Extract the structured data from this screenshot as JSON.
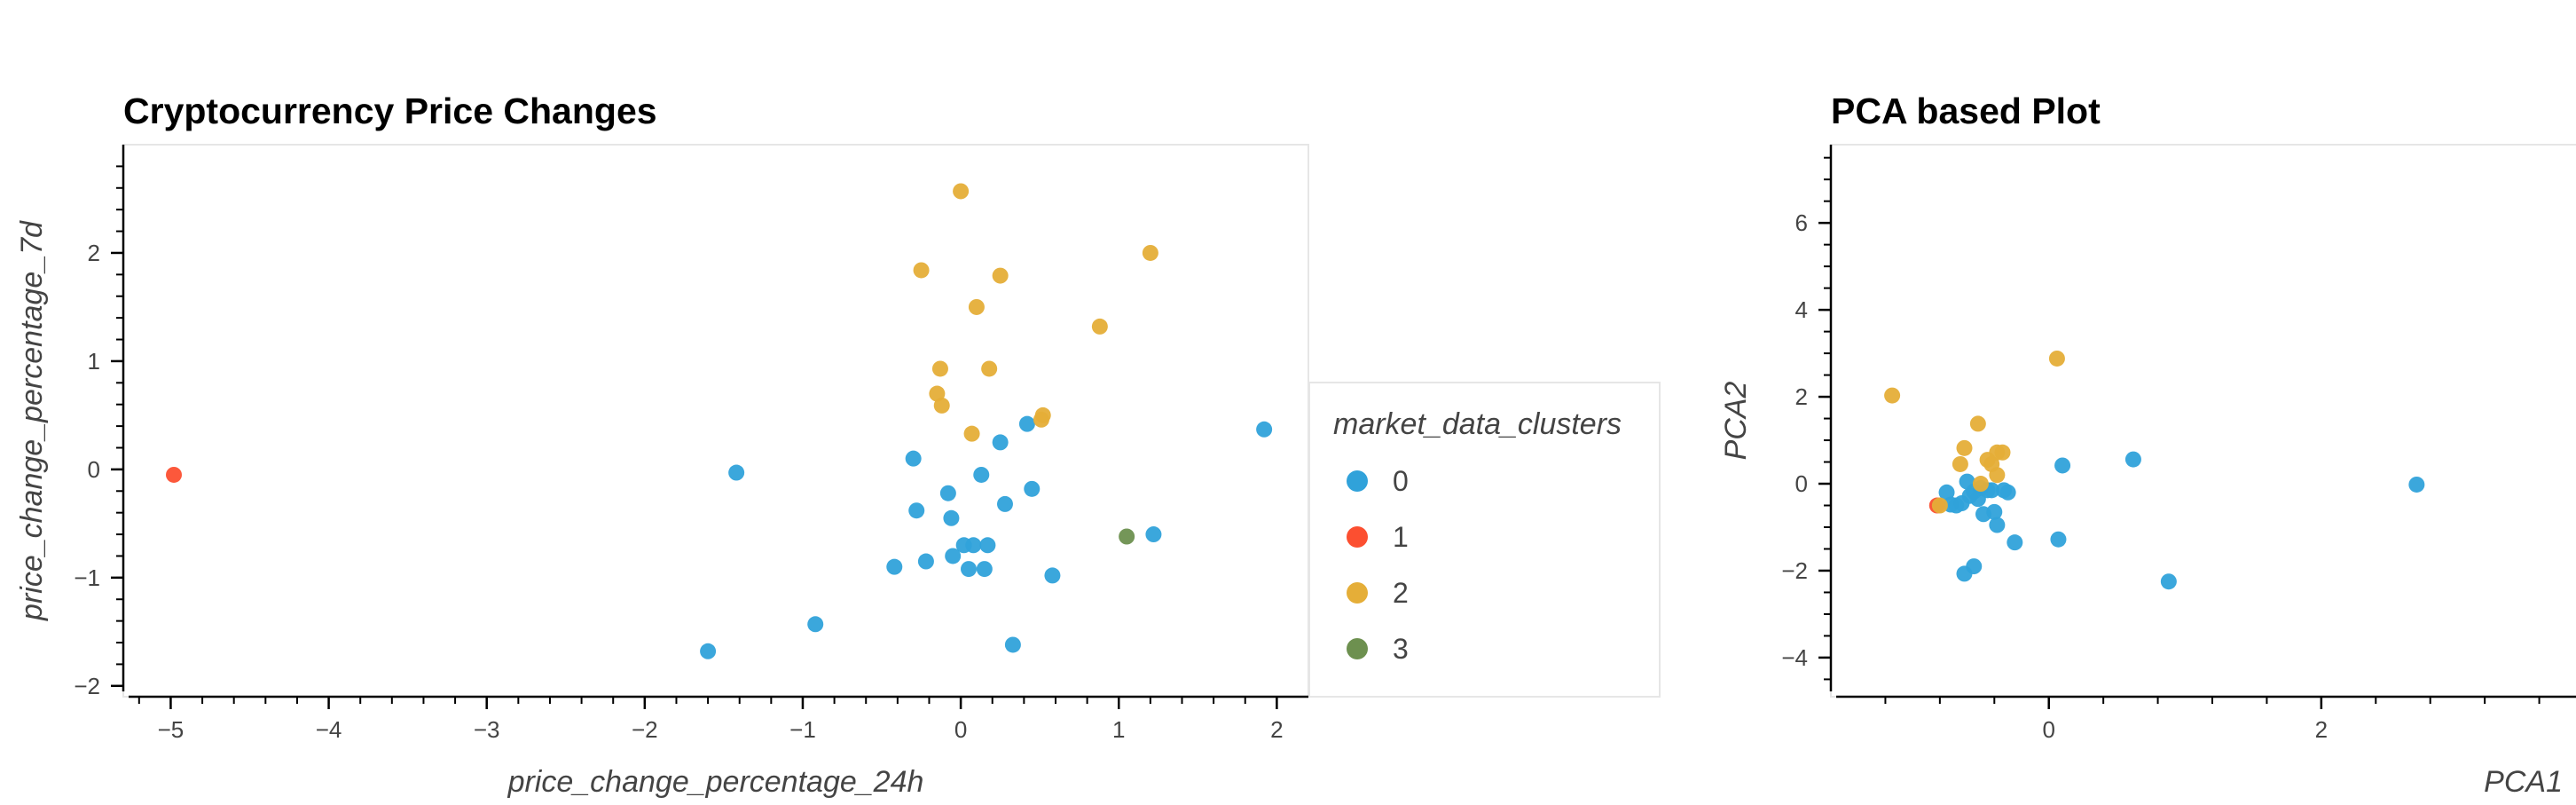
{
  "chart_data": [
    {
      "type": "scatter",
      "title": "Cryptocurrency Price Changes",
      "xlabel": "price_change_percentage_24h",
      "ylabel": "price_change_percentage_7d",
      "xlim": [
        -5.3,
        2.2
      ],
      "ylim": [
        -2.1,
        3.0
      ],
      "xticks": [
        -5,
        -4,
        -3,
        -2,
        -1,
        0,
        1,
        2
      ],
      "yticks": [
        -2,
        -1,
        0,
        1,
        2
      ],
      "grid": false,
      "legend": {
        "title": "market_data_clusters",
        "placement": "right",
        "entries": [
          {
            "label": "0",
            "color": "#30a2da"
          },
          {
            "label": "1",
            "color": "#fc4f30"
          },
          {
            "label": "2",
            "color": "#e5ae38"
          },
          {
            "label": "3",
            "color": "#6d904f"
          }
        ]
      },
      "series": [
        {
          "name": "0",
          "color": "#30a2da",
          "points": [
            [
              -1.6,
              -1.68
            ],
            [
              -1.42,
              -0.03
            ],
            [
              -0.92,
              -1.43
            ],
            [
              -0.42,
              -0.9
            ],
            [
              -0.3,
              0.1
            ],
            [
              -0.28,
              -0.38
            ],
            [
              -0.22,
              -0.85
            ],
            [
              -0.08,
              -0.22
            ],
            [
              -0.06,
              -0.45
            ],
            [
              -0.05,
              -0.8
            ],
            [
              0.02,
              -0.7
            ],
            [
              0.05,
              -0.92
            ],
            [
              0.08,
              -0.7
            ],
            [
              0.13,
              -0.05
            ],
            [
              0.15,
              -0.92
            ],
            [
              0.17,
              -0.7
            ],
            [
              0.25,
              0.25
            ],
            [
              0.28,
              -0.32
            ],
            [
              0.33,
              -1.62
            ],
            [
              0.42,
              0.42
            ],
            [
              0.45,
              -0.18
            ],
            [
              0.58,
              -0.98
            ],
            [
              1.22,
              -0.6
            ],
            [
              1.92,
              0.37
            ]
          ]
        },
        {
          "name": "1",
          "color": "#fc4f30",
          "points": [
            [
              -4.98,
              -0.05
            ]
          ]
        },
        {
          "name": "2",
          "color": "#e5ae38",
          "points": [
            [
              0.0,
              2.57
            ],
            [
              -0.25,
              1.84
            ],
            [
              0.25,
              1.79
            ],
            [
              1.2,
              2.0
            ],
            [
              0.1,
              1.5
            ],
            [
              0.88,
              1.32
            ],
            [
              -0.13,
              0.93
            ],
            [
              0.18,
              0.93
            ],
            [
              -0.15,
              0.7
            ],
            [
              -0.12,
              0.59
            ],
            [
              0.52,
              0.5
            ],
            [
              0.51,
              0.46
            ],
            [
              0.07,
              0.33
            ]
          ]
        },
        {
          "name": "3",
          "color": "#6d904f",
          "points": [
            [
              1.05,
              -0.62
            ]
          ]
        }
      ]
    },
    {
      "type": "scatter",
      "title": "PCA based Plot",
      "xlabel": "PCA1",
      "ylabel": "PCA2",
      "xlim": [
        -1.6,
        4.0
      ],
      "ylim": [
        -4.9,
        7.8
      ],
      "xticks": [
        0,
        2
      ],
      "yticks": [
        -4,
        -2,
        0,
        2,
        4,
        6
      ],
      "grid": false,
      "series": [
        {
          "name": "0",
          "color": "#30a2da",
          "points": [
            [
              -0.75,
              -0.2
            ],
            [
              -0.72,
              -0.48
            ],
            [
              -0.68,
              -0.5
            ],
            [
              -0.64,
              -0.45
            ],
            [
              -0.6,
              0.05
            ],
            [
              -0.58,
              -0.28
            ],
            [
              -0.55,
              -0.18
            ],
            [
              -0.52,
              -0.35
            ],
            [
              -0.5,
              -0.1
            ],
            [
              -0.48,
              -0.7
            ],
            [
              -0.45,
              -0.15
            ],
            [
              -0.42,
              -0.15
            ],
            [
              -0.4,
              -0.65
            ],
            [
              -0.38,
              -0.95
            ],
            [
              -0.33,
              -0.15
            ],
            [
              -0.3,
              -0.2
            ],
            [
              -0.25,
              -1.35
            ],
            [
              -0.62,
              -2.07
            ],
            [
              -0.55,
              -1.9
            ],
            [
              0.1,
              0.42
            ],
            [
              0.62,
              0.56
            ],
            [
              0.07,
              -1.28
            ],
            [
              0.88,
              -2.25
            ],
            [
              2.7,
              -0.02
            ]
          ]
        },
        {
          "name": "1",
          "color": "#fc4f30",
          "points": [
            [
              -0.82,
              -0.5
            ]
          ]
        },
        {
          "name": "2",
          "color": "#e5ae38",
          "points": [
            [
              -1.15,
              2.03
            ],
            [
              0.06,
              2.88
            ],
            [
              -0.52,
              1.38
            ],
            [
              -0.62,
              0.82
            ],
            [
              -0.65,
              0.45
            ],
            [
              -0.45,
              0.55
            ],
            [
              -0.42,
              0.45
            ],
            [
              -0.38,
              0.72
            ],
            [
              -0.34,
              0.72
            ],
            [
              -0.38,
              0.2
            ],
            [
              -0.8,
              -0.5
            ],
            [
              -0.5,
              0.0
            ]
          ]
        }
      ]
    }
  ]
}
